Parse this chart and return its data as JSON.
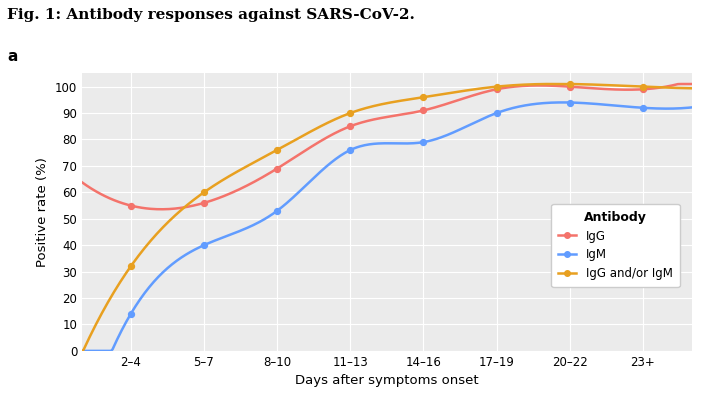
{
  "title": "Fig. 1: Antibody responses against SARS-CoV-2.",
  "panel_label": "a",
  "xlabel": "Days after symptoms onset",
  "ylabel": "Positive rate (%)",
  "legend_title": "Antibody",
  "x_ticks": [
    "2–4",
    "5–7",
    "8–10",
    "11–13",
    "14–16",
    "17–19",
    "20–22",
    "23+"
  ],
  "x_positions": [
    3,
    6,
    9,
    12,
    15,
    18,
    21,
    24
  ],
  "ylim": [
    0,
    105
  ],
  "yticks": [
    0,
    10,
    20,
    30,
    40,
    50,
    60,
    70,
    80,
    90,
    100
  ],
  "IgG_points": [
    55,
    56,
    69,
    85,
    91,
    99,
    100,
    99
  ],
  "IgM_points": [
    14,
    40,
    53,
    76,
    79,
    90,
    94,
    92
  ],
  "IgGM_points": [
    32,
    60,
    76,
    90,
    96,
    100,
    101,
    100
  ],
  "color_IgG": "#F4736B",
  "color_IgM": "#619CFF",
  "color_IgGM": "#E8A020",
  "bg_color": "#EBEBEB",
  "grid_color": "#FFFFFF",
  "point_size": 18,
  "line_width": 1.8
}
